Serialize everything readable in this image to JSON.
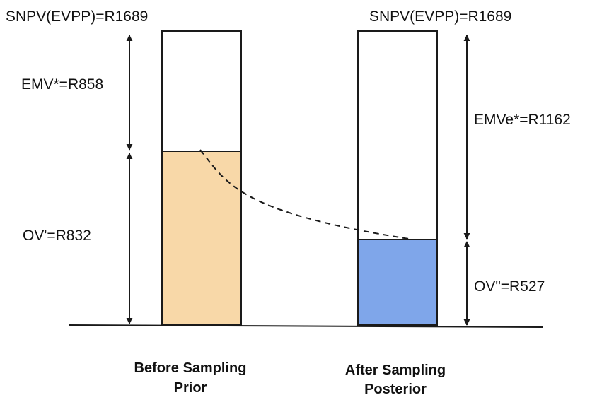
{
  "colors": {
    "prior_fill": "#f8d8a8",
    "posterior_fill": "#7fa6ea",
    "stroke": "#1a1a1a",
    "background": "#ffffff"
  },
  "before": {
    "top_label": "SNPV(EVPP)=R1689",
    "emv_label": "EMV*=R858",
    "ov_label": "OV'=R832",
    "caption_line1": "Before Sampling",
    "caption_line2": "Prior",
    "total_value": 1689,
    "filled_value": 832
  },
  "after": {
    "top_label": "SNPV(EVPP)=R1689",
    "emv_label": "EMVe*=R1162",
    "ov_label": "OV\"=R527",
    "caption_line1": "After Sampling",
    "caption_line2": "Posterior",
    "total_value": 1689,
    "filled_value": 527
  }
}
